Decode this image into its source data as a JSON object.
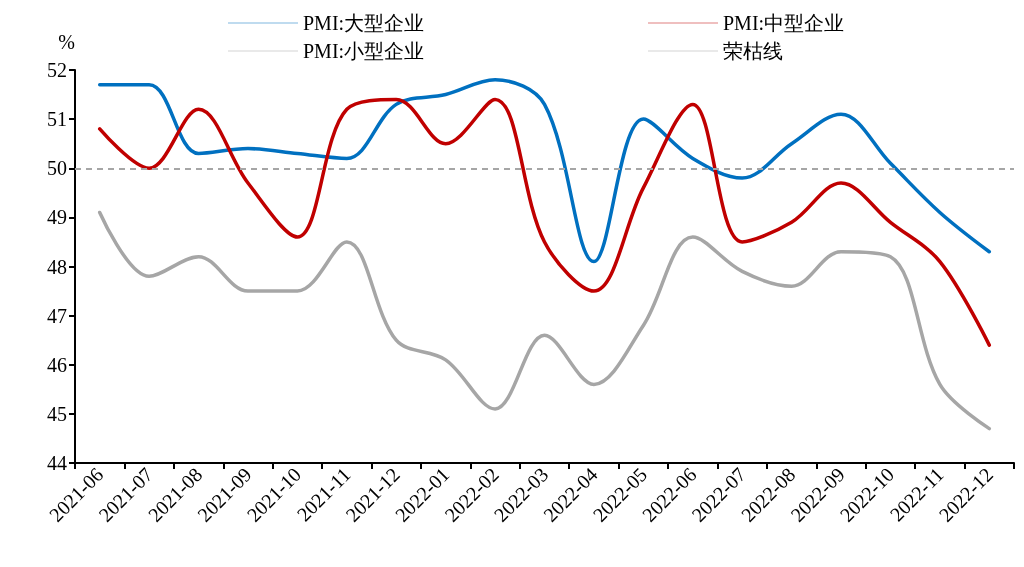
{
  "chart_data": {
    "type": "line",
    "ylabel": "%",
    "categories": [
      "2021-06",
      "2021-07",
      "2021-08",
      "2021-09",
      "2021-10",
      "2021-11",
      "2021-12",
      "2022-01",
      "2022-02",
      "2022-03",
      "2022-04",
      "2022-05",
      "2022-06",
      "2022-07",
      "2022-08",
      "2022-09",
      "2022-10",
      "2022-11",
      "2022-12"
    ],
    "series": [
      {
        "name": "PMI:大型企业",
        "color": "#0070c0",
        "values": [
          51.7,
          51.7,
          50.3,
          50.4,
          50.3,
          50.2,
          51.3,
          51.5,
          51.8,
          51.3,
          48.1,
          51.0,
          50.2,
          49.8,
          50.5,
          51.1,
          50.1,
          49.1,
          48.3
        ]
      },
      {
        "name": "PMI:中型企业",
        "color": "#c00000",
        "values": [
          50.8,
          50.0,
          51.2,
          49.7,
          48.6,
          51.2,
          51.4,
          50.5,
          51.4,
          48.5,
          47.5,
          49.6,
          51.3,
          48.5,
          48.9,
          49.7,
          48.9,
          48.1,
          46.4
        ]
      },
      {
        "name": "PMI:小型企业",
        "color": "#a6a6a6",
        "values": [
          49.1,
          47.8,
          48.2,
          47.5,
          47.5,
          48.5,
          46.5,
          46.1,
          45.1,
          46.6,
          45.6,
          46.8,
          48.6,
          47.9,
          47.6,
          48.3,
          48.2,
          45.6,
          44.7
        ]
      }
    ],
    "ref_lines": [
      {
        "axis": "y",
        "value": 50,
        "label": "荣枯线",
        "color": "#a6a6a6",
        "line_style": "dashed"
      }
    ],
    "ylim": [
      44,
      52
    ],
    "yticks": [
      44,
      45,
      46,
      47,
      48,
      49,
      50,
      51,
      52
    ],
    "grid": false,
    "legend": "top",
    "marker": "none",
    "line_style": "solid"
  }
}
